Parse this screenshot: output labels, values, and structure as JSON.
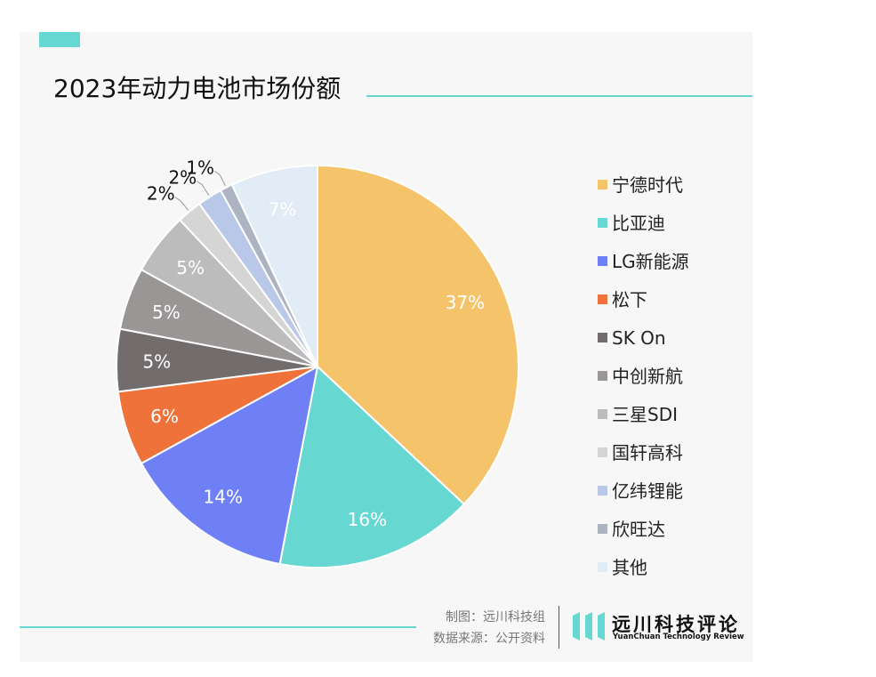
{
  "chart_data": {
    "type": "pie",
    "title": "2023年动力电池市场份额",
    "legend_position": "right",
    "slices": [
      {
        "label": "宁德时代",
        "value": 37,
        "display": "37%",
        "color": "#f5c46a"
      },
      {
        "label": "比亚迪",
        "value": 16,
        "display": "16%",
        "color": "#66d7d1"
      },
      {
        "label": "LG新能源",
        "value": 14,
        "display": "14%",
        "color": "#6f80f6"
      },
      {
        "label": "松下",
        "value": 6,
        "display": "6%",
        "color": "#ee723a"
      },
      {
        "label": "SK On",
        "value": 5,
        "display": "5%",
        "color": "#736c6c"
      },
      {
        "label": "中创新航",
        "value": 5,
        "display": "5%",
        "color": "#9a9696"
      },
      {
        "label": "三星SDI",
        "value": 5,
        "display": "5%",
        "color": "#bcbcbc"
      },
      {
        "label": "国轩高科",
        "value": 2,
        "display": "2%",
        "color": "#d5d5d5"
      },
      {
        "label": "亿纬锂能",
        "value": 2,
        "display": "2%",
        "color": "#b9c7e8"
      },
      {
        "label": "欣旺达",
        "value": 1,
        "display": "1%",
        "color": "#adb4c1"
      },
      {
        "label": "其他",
        "value": 7,
        "display": "7%",
        "color": "#e2ecf6"
      }
    ]
  },
  "footer": {
    "credit_chart": "制图：远川科技组",
    "credit_source": "数据来源：公开资料",
    "logo_name": "远川科技评论",
    "logo_subtitle": "YuanChuan Technology Review"
  },
  "colors": {
    "accent": "#66d7d1",
    "background": "#f7f7f7"
  }
}
